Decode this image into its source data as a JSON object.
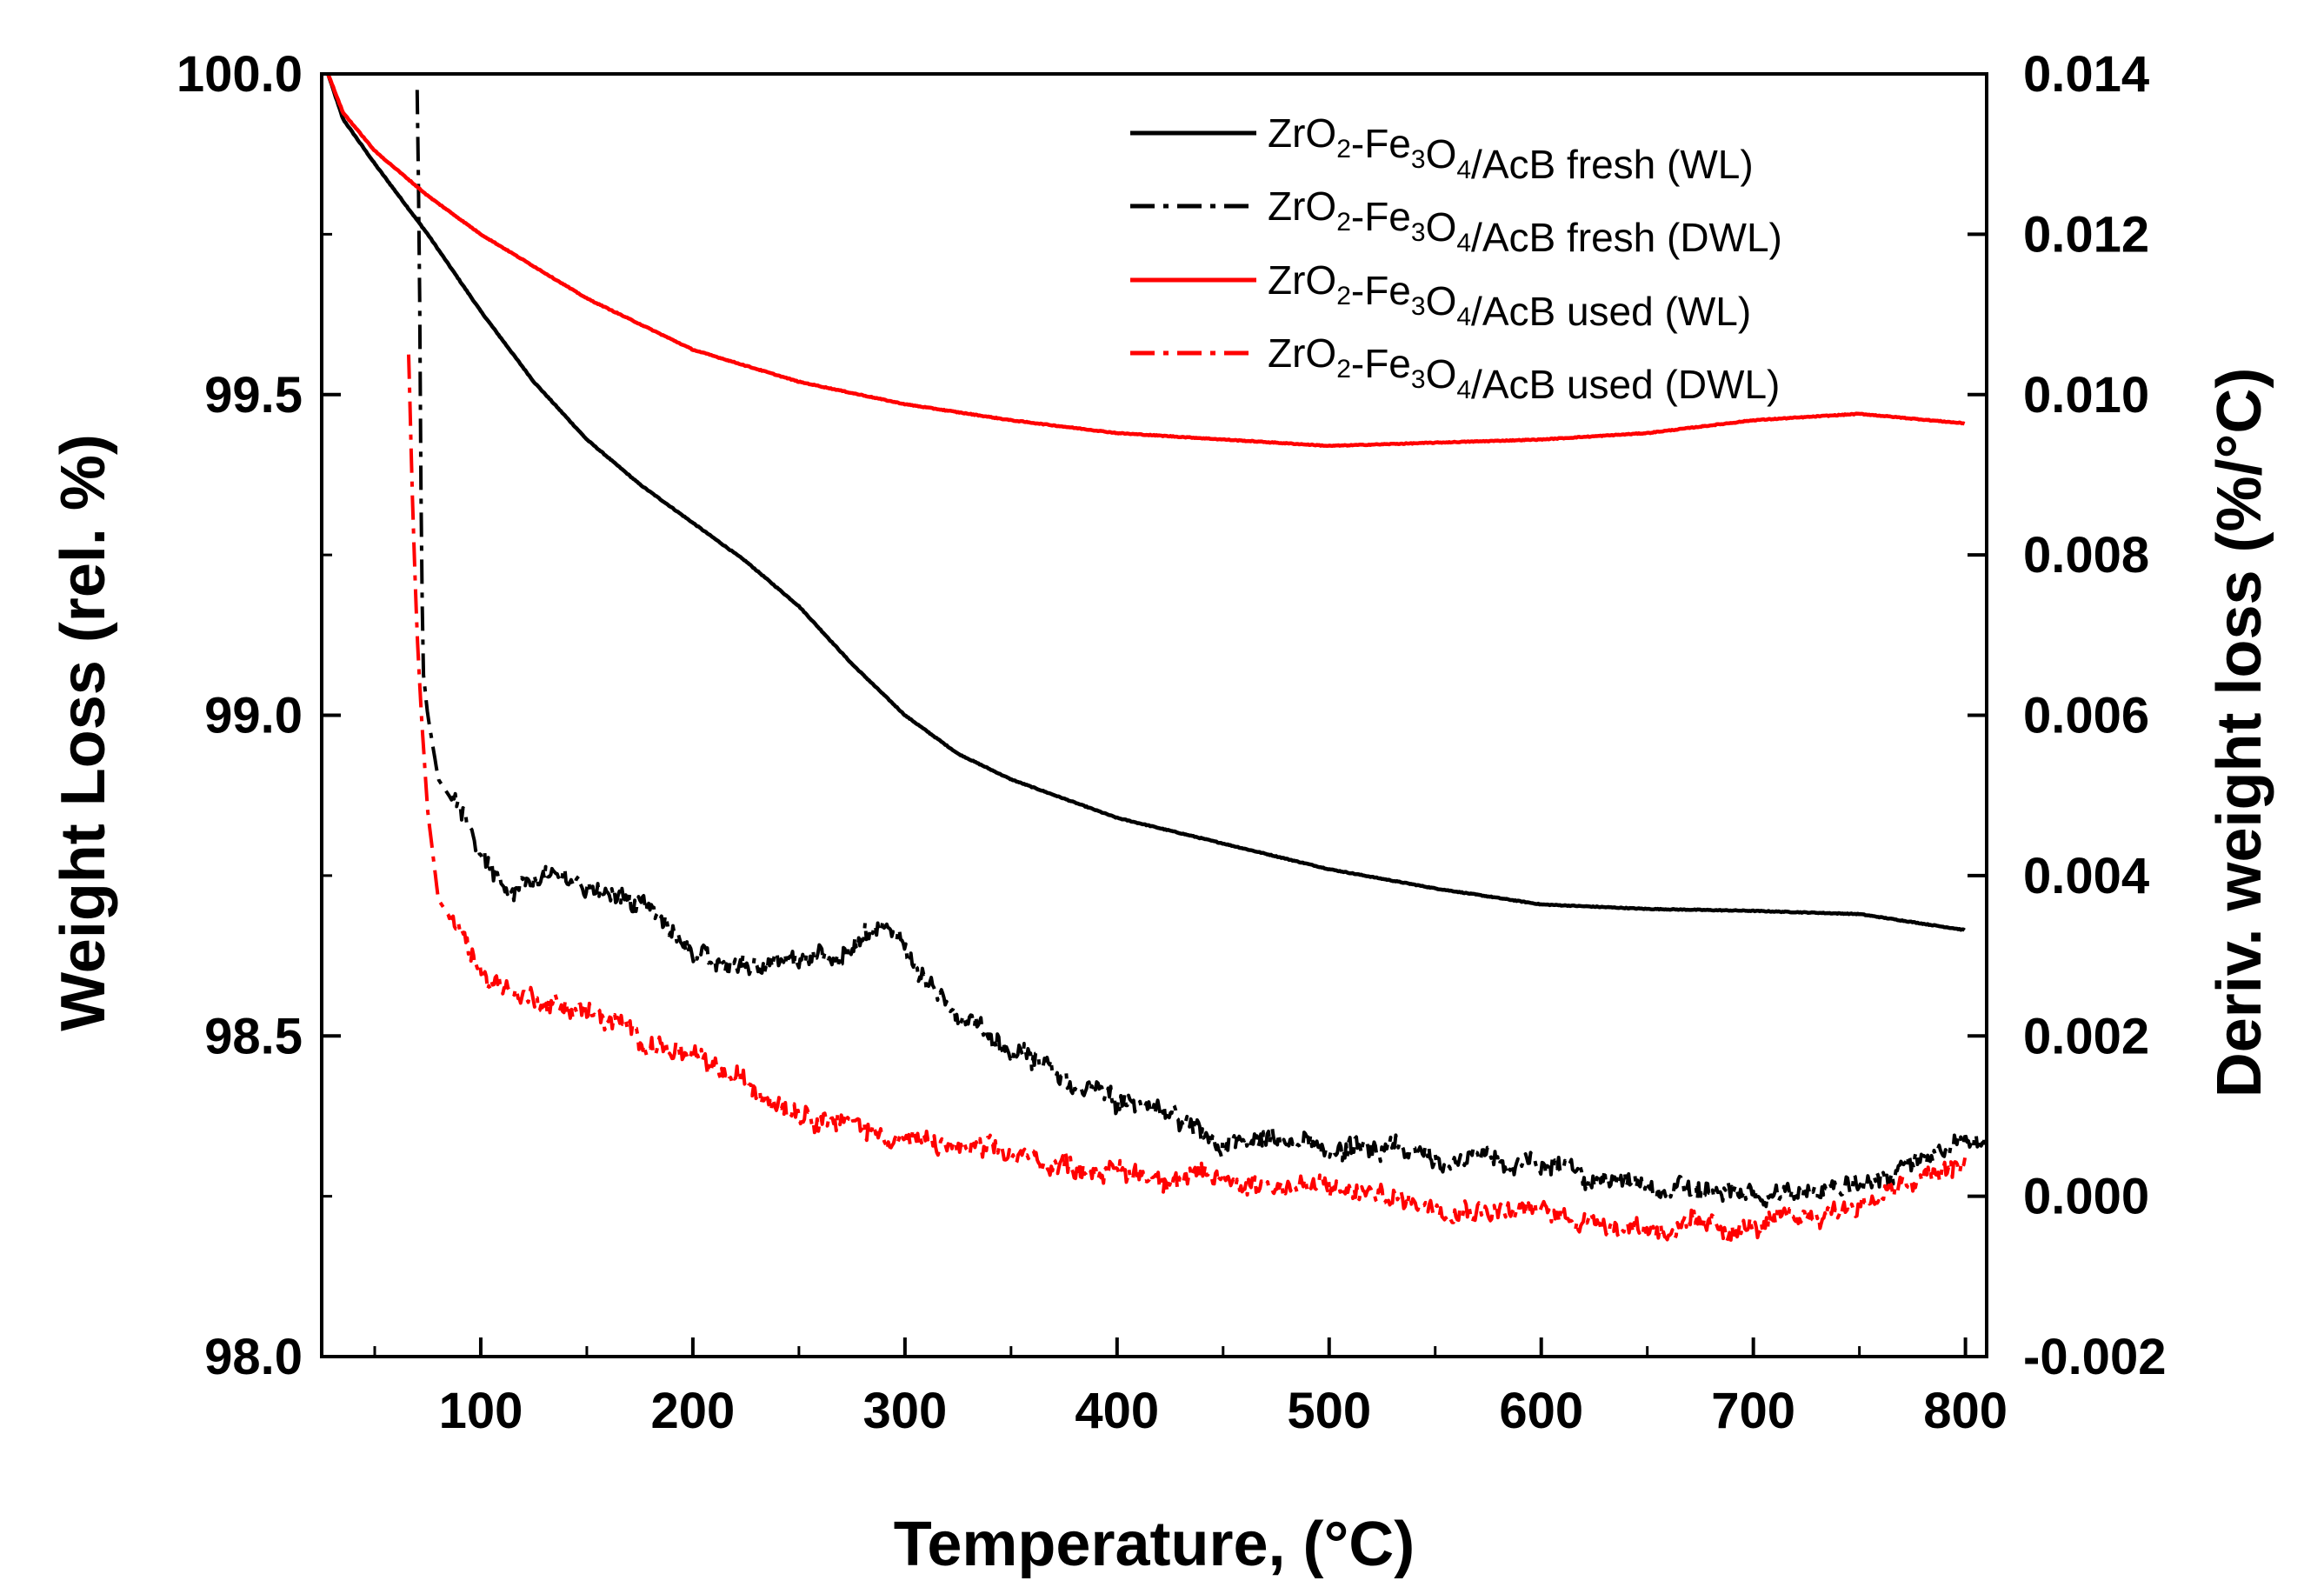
{
  "chart_data": {
    "type": "line",
    "xlabel": "Temperature, (°C)",
    "ylabel": "Weight Loss (rel. %)",
    "y2label": "Deriv. weight loss (%/°C)",
    "xlim": [
      25,
      810
    ],
    "ylim": [
      98.0,
      100.0
    ],
    "y2lim": [
      -0.002,
      0.014
    ],
    "xticks": [
      100,
      200,
      300,
      400,
      500,
      600,
      700,
      800
    ],
    "xtick_labels": [
      "100",
      "200",
      "300",
      "400",
      "500",
      "600",
      "700",
      "800"
    ],
    "yticks": [
      98.0,
      98.5,
      99.0,
      99.5,
      100.0
    ],
    "ytick_labels": [
      "98.0",
      "98.5",
      "99.0",
      "99.5",
      "100.0"
    ],
    "y2ticks": [
      -0.002,
      0.0,
      0.002,
      0.004,
      0.006,
      0.008,
      0.01,
      0.012,
      0.014
    ],
    "y2tick_labels": [
      "-0.002",
      "0.000",
      "0.002",
      "0.004",
      "0.006",
      "0.008",
      "0.010",
      "0.012",
      "0.014"
    ],
    "legend_position": "top-right",
    "series": [
      {
        "name": "ZrO2-Fe3O4/AcB fresh (WL)",
        "legend": {
          "a": "ZrO",
          "s1": "2",
          "b": "-Fe",
          "s2": "3",
          "c": "O",
          "s3": "4",
          "d": "/AcB fresh (WL)"
        },
        "axis": "left",
        "color": "#000000",
        "style": "solid",
        "noise": 0.0008,
        "x": [
          28,
          35,
          50,
          75,
          100,
          125,
          150,
          175,
          200,
          225,
          250,
          275,
          300,
          325,
          350,
          375,
          400,
          450,
          500,
          550,
          600,
          650,
          700,
          750,
          800
        ],
        "y": [
          100.0,
          99.93,
          99.86,
          99.75,
          99.63,
          99.52,
          99.43,
          99.36,
          99.3,
          99.24,
          99.17,
          99.08,
          99.0,
          98.94,
          98.9,
          98.87,
          98.84,
          98.8,
          98.76,
          98.73,
          98.705,
          98.698,
          98.695,
          98.69,
          98.665
        ]
      },
      {
        "name": "ZrO2-Fe3O4/AcB fresh (DWL)",
        "legend": {
          "a": "ZrO",
          "s1": "2",
          "b": "-Fe",
          "s2": "3",
          "c": "O",
          "s3": "4",
          "d": "/AcB fresh (DWL)"
        },
        "axis": "right",
        "color": "#000000",
        "style": "dashdot",
        "noise": 0.00012,
        "x": [
          70,
          71,
          72,
          73,
          75,
          80,
          90,
          100,
          115,
          130,
          150,
          175,
          190,
          210,
          230,
          250,
          270,
          285,
          300,
          315,
          330,
          350,
          375,
          400,
          450,
          500,
          550,
          600,
          650,
          700,
          750,
          780,
          800,
          810
        ],
        "y": [
          0.0138,
          0.012,
          0.008,
          0.0065,
          0.006,
          0.0052,
          0.0048,
          0.0043,
          0.0038,
          0.004,
          0.0039,
          0.0037,
          0.0033,
          0.0029,
          0.0029,
          0.0029,
          0.003,
          0.0033,
          0.0032,
          0.0025,
          0.0021,
          0.0018,
          0.0015,
          0.0012,
          0.0007,
          0.0006,
          0.0005,
          0.0004,
          0.0001,
          0.0,
          0.0001,
          0.0005,
          0.0006,
          0.0007
        ]
      },
      {
        "name": "ZrO2-Fe3O4/AcB used (WL)",
        "legend": {
          "a": "ZrO",
          "s1": "2",
          "b": "-Fe",
          "s2": "3",
          "c": "O",
          "s3": "4",
          "d": "/AcB used (WL)"
        },
        "axis": "left",
        "color": "#ff0000",
        "style": "solid",
        "noise": 0.0008,
        "x": [
          28,
          35,
          50,
          75,
          100,
          150,
          200,
          250,
          300,
          350,
          400,
          450,
          500,
          550,
          600,
          650,
          700,
          750,
          800
        ],
        "y": [
          100.0,
          99.94,
          99.88,
          99.81,
          99.75,
          99.65,
          99.57,
          99.52,
          99.485,
          99.46,
          99.44,
          99.43,
          99.42,
          99.425,
          99.43,
          99.44,
          99.46,
          99.47,
          99.455
        ]
      },
      {
        "name": "ZrO2-Fe3O4/AcB used (DWL)",
        "legend": {
          "a": "ZrO",
          "s1": "2",
          "b": "-Fe",
          "s2": "3",
          "c": "O",
          "s3": "4",
          "d": "/AcB used (DWL)"
        },
        "axis": "right",
        "color": "#ff0000",
        "style": "dashdot",
        "noise": 0.00012,
        "x": [
          66,
          67,
          68,
          70,
          72,
          75,
          80,
          90,
          100,
          120,
          150,
          175,
          200,
          250,
          300,
          350,
          400,
          450,
          500,
          550,
          600,
          650,
          700,
          750,
          800
        ],
        "y": [
          0.0105,
          0.0095,
          0.0085,
          0.007,
          0.006,
          0.0048,
          0.0037,
          0.0033,
          0.0028,
          0.0025,
          0.0023,
          0.002,
          0.0017,
          0.0011,
          0.0007,
          0.0005,
          0.0003,
          0.0002,
          0.0001,
          -0.0001,
          -0.0002,
          -0.0004,
          -0.0004,
          -0.0001,
          0.0004
        ]
      }
    ]
  }
}
